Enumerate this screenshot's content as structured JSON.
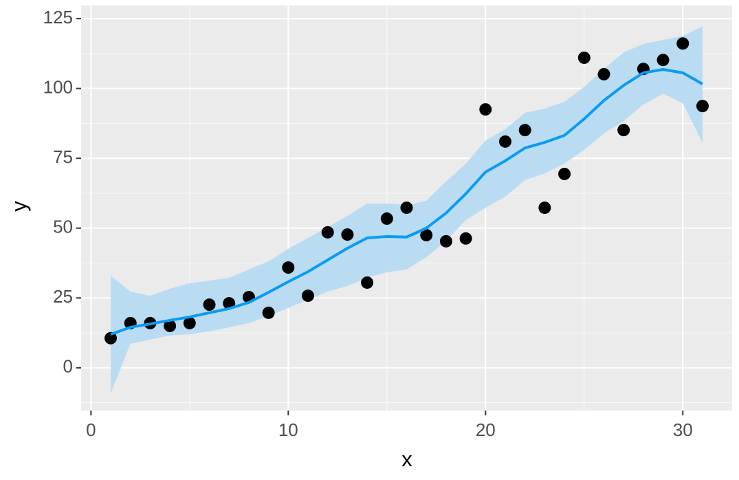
{
  "chart_data": {
    "type": "scatter",
    "x_label": "x",
    "y_label": "y",
    "x": [
      1,
      2,
      3,
      4,
      5,
      6,
      7,
      8,
      9,
      10,
      11,
      12,
      13,
      14,
      15,
      16,
      17,
      18,
      19,
      20,
      21,
      22,
      23,
      24,
      25,
      26,
      27,
      28,
      29,
      30,
      31
    ],
    "values": [
      10.6,
      16,
      16,
      15,
      16,
      22.6,
      23.1,
      25.3,
      19.7,
      35.9,
      25.8,
      48.5,
      47.7,
      30.5,
      53.4,
      57.3,
      47.5,
      45.3,
      46.3,
      92.5,
      81,
      85.1,
      57.3,
      69.4,
      111,
      105.1,
      85.1,
      107,
      110.2,
      116.1,
      93.7
    ],
    "color": "#000000",
    "smooth": {
      "color": "#0a9bf5",
      "band_color": "#b9dcf3",
      "values": [
        12,
        14.5,
        15.7,
        17,
        18.2,
        19.7,
        21.2,
        23.4,
        27,
        30.8,
        34.4,
        38.6,
        42.8,
        46.5,
        47,
        46.8,
        50,
        55.4,
        62.3,
        70.1,
        74.1,
        78.7,
        80.7,
        83.2,
        89.1,
        95.7,
        101.1,
        105.6,
        106.8,
        105.6,
        101.6
      ],
      "lower": [
        -9.1,
        8.6,
        10.1,
        11.6,
        12,
        13,
        14.5,
        16,
        18.5,
        21.4,
        24.4,
        27.3,
        29.3,
        32.2,
        34.2,
        35.2,
        39.6,
        45.5,
        52.9,
        57.3,
        61.3,
        67.2,
        69.6,
        73.1,
        78,
        83.9,
        88.3,
        94.2,
        98.2,
        94.7,
        80.5
      ],
      "upper": [
        33,
        27.3,
        25.8,
        28.3,
        30.3,
        31.2,
        32.2,
        35.2,
        38.1,
        42.6,
        46.5,
        50.4,
        54.4,
        58.8,
        58.8,
        58.3,
        59.8,
        66.7,
        73.1,
        81.4,
        85.4,
        91.3,
        92.8,
        95.2,
        100.6,
        107,
        112.9,
        115.9,
        117.4,
        118.8,
        122.3
      ]
    },
    "xlim": [
      -0.5,
      32.5
    ],
    "ylim": [
      -15.3,
      129.7
    ],
    "xticks": [
      0,
      10,
      20,
      30
    ],
    "yticks": [
      0,
      25,
      50,
      75,
      100,
      125
    ],
    "x_minor_ticks": [
      5,
      15,
      25
    ],
    "y_minor_ticks": [
      -12.5,
      12.5,
      37.5,
      62.5,
      87.5,
      112.5
    ],
    "grid": true
  }
}
